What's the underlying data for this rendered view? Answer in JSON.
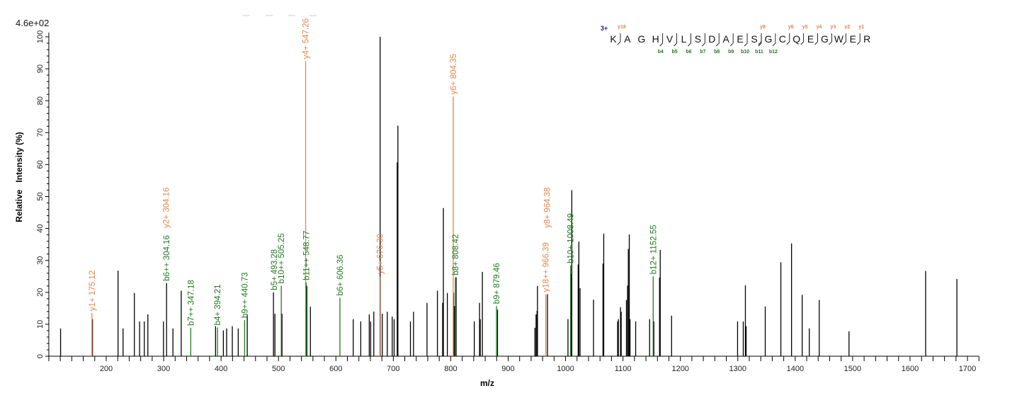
{
  "chart_data": {
    "type": "bar",
    "subtype": "mass-spectrum",
    "scale_label": "4.6e+02",
    "xlabel": "m/z",
    "ylabel": "Relative   Intensity (%)",
    "xlim": [
      100,
      1720
    ],
    "ylim": [
      0,
      100
    ],
    "x_ticks": [
      200,
      300,
      400,
      500,
      600,
      700,
      800,
      900,
      1000,
      1100,
      1200,
      1300,
      1400,
      1500,
      1600,
      1700
    ],
    "y_ticks": [
      0,
      10,
      20,
      30,
      40,
      50,
      60,
      70,
      80,
      90,
      100
    ],
    "grid": false,
    "colors": {
      "peak": "#000000",
      "y_ion": "#e8834a",
      "b_ion": "#1f7a1f",
      "charge": "#1a1aa0"
    },
    "peaks": [
      [
        120.5,
        8.7
      ],
      [
        176.1,
        11.6
      ],
      [
        220.6,
        26.8
      ],
      [
        229.3,
        8.7
      ],
      [
        249.0,
        19.8
      ],
      [
        258.1,
        10.9
      ],
      [
        266.3,
        10.9
      ],
      [
        272.5,
        13.1
      ],
      [
        299.7,
        10.9
      ],
      [
        305.1,
        22.9
      ],
      [
        316.2,
        8.7
      ],
      [
        330.6,
        20.5
      ],
      [
        390.4,
        9.4
      ],
      [
        404.0,
        8.1
      ],
      [
        409.7,
        8.7
      ],
      [
        419.6,
        9.4
      ],
      [
        429.9,
        8.7
      ],
      [
        445.6,
        13.1
      ],
      [
        491.3,
        20.0
      ],
      [
        493.8,
        13.3
      ],
      [
        506.1,
        13.3
      ],
      [
        549.4,
        22.0
      ],
      [
        555.6,
        15.5
      ],
      [
        630.2,
        11.6
      ],
      [
        643.3,
        10.9
      ],
      [
        658.1,
        13.1
      ],
      [
        660.6,
        10.9
      ],
      [
        666.0,
        14.0
      ],
      [
        677.1,
        100
      ],
      [
        680.8,
        13.3
      ],
      [
        689.5,
        13.9
      ],
      [
        698.1,
        12.4
      ],
      [
        701.4,
        11.6
      ],
      [
        706.8,
        60.7
      ],
      [
        708.0,
        72.2
      ],
      [
        729.8,
        10.9
      ],
      [
        735.2,
        13.9
      ],
      [
        758.7,
        16.7
      ],
      [
        776.8,
        20.5
      ],
      [
        785.9,
        16.7
      ],
      [
        787.2,
        46.4
      ],
      [
        794.1,
        19.8
      ],
      [
        805.2,
        19.9
      ],
      [
        806.5,
        15.7
      ],
      [
        809.4,
        24.7
      ],
      [
        841.0,
        10.9
      ],
      [
        850.2,
        16.7
      ],
      [
        851.4,
        11.6
      ],
      [
        855.1,
        26.4
      ],
      [
        881.5,
        14.6
      ],
      [
        946.6,
        8.9
      ],
      [
        948.6,
        13.1
      ],
      [
        950.3,
        14.2
      ],
      [
        951.1,
        22.0
      ],
      [
        968.4,
        19.4
      ],
      [
        1004.2,
        11.6
      ],
      [
        1009.6,
        25.7
      ],
      [
        1010.9,
        52.0
      ],
      [
        1022.0,
        28.7
      ],
      [
        1023.2,
        35.9
      ],
      [
        1025.3,
        21.3
      ],
      [
        1048.7,
        17.7
      ],
      [
        1065.2,
        29.0
      ],
      [
        1066.5,
        38.4
      ],
      [
        1090.7,
        10.9
      ],
      [
        1092.0,
        11.6
      ],
      [
        1095.7,
        15.3
      ],
      [
        1096.9,
        13.9
      ],
      [
        1106.0,
        17.6
      ],
      [
        1108.0,
        22.1
      ],
      [
        1109.3,
        33.6
      ],
      [
        1111.0,
        38.1
      ],
      [
        1112.3,
        11.6
      ],
      [
        1122.1,
        10.9
      ],
      [
        1146.4,
        11.6
      ],
      [
        1153.8,
        10.9
      ],
      [
        1163.7,
        24.6
      ],
      [
        1164.9,
        33.3
      ],
      [
        1184.7,
        12.7
      ],
      [
        1299.6,
        10.9
      ],
      [
        1309.5,
        10.9
      ],
      [
        1313.2,
        22.2
      ],
      [
        1314.5,
        9.4
      ],
      [
        1347.8,
        15.6
      ],
      [
        1375.0,
        29.4
      ],
      [
        1393.6,
        35.3
      ],
      [
        1412.1,
        19.2
      ],
      [
        1424.5,
        8.7
      ],
      [
        1441.8,
        17.6
      ],
      [
        1493.7,
        7.8
      ],
      [
        1627.2,
        26.7
      ],
      [
        1681.6,
        24.2
      ]
    ],
    "annotations": [
      {
        "label": "y1+ 175.12",
        "ion": "y",
        "mz": 175.1,
        "intensity": 13.5
      },
      {
        "label": "y2+ 304.16",
        "ion": "y",
        "mz": 304.2,
        "intensity": 39.5,
        "label_only": true
      },
      {
        "label": "b6++ 304.16",
        "ion": "b",
        "mz": 304.6,
        "intensity": 22.9,
        "label_only": true
      },
      {
        "label": "b7++ 347.18",
        "ion": "b",
        "mz": 347.2,
        "intensity": 8.9
      },
      {
        "label": "b4+ 394.21",
        "ion": "b",
        "mz": 393.7,
        "intensity": 9.0
      },
      {
        "label": "b9++ 440.73",
        "ion": "b",
        "mz": 441.0,
        "intensity": 11.3
      },
      {
        "label": "b5+ 493.28",
        "ion": "b",
        "mz": 492.5,
        "intensity": 20.0,
        "label_only": true
      },
      {
        "label": "b10++ 505.25",
        "ion": "b",
        "mz": 504.9,
        "intensity": 22.1
      },
      {
        "label": "y4+ 547.26",
        "ion": "y",
        "mz": 547.3,
        "intensity": 92.4
      },
      {
        "label": "b11++ 548.77",
        "ion": "b",
        "mz": 548.2,
        "intensity": 23.1
      },
      {
        "label": "b6+ 606.36",
        "ion": "b",
        "mz": 607.0,
        "intensity": 18.3
      },
      {
        "label": "y5+ 676.30",
        "ion": "y",
        "mz": 676.5,
        "intensity": 25.0
      },
      {
        "label": "y6+ 804.35",
        "ion": "y",
        "mz": 804.4,
        "intensity": 81.3
      },
      {
        "label": "b8+ 808.42",
        "ion": "b",
        "mz": 808.2,
        "intensity": 24.7
      },
      {
        "label": "b9+ 879.46",
        "ion": "b",
        "mz": 879.8,
        "intensity": 15.7
      },
      {
        "label": "y18++ 966.39",
        "ion": "y",
        "mz": 965.5,
        "intensity": 19.4
      },
      {
        "label": "y8+ 964.38",
        "ion": "y",
        "mz": 968.0,
        "intensity": 39.5,
        "label_only": true
      },
      {
        "label": "b10+ 1008.49",
        "ion": "b",
        "mz": 1008.8,
        "intensity": 28.4
      },
      {
        "label": "b12+ 1152.55",
        "ion": "b",
        "mz": 1152.6,
        "intensity": 25.0
      }
    ],
    "sequence": {
      "charge": "3+",
      "residues": [
        "K",
        "A",
        "G",
        "H",
        "V",
        "L",
        "S",
        "D",
        "A",
        "E",
        "S",
        "G",
        "C",
        "Q",
        "E",
        "G",
        "W",
        "E",
        "R"
      ],
      "y_cleavages": [
        {
          "after": 0,
          "label": "y18"
        },
        {
          "after": 10,
          "label": "y8"
        },
        {
          "after": 12,
          "label": "y6"
        },
        {
          "after": 13,
          "label": "y5"
        },
        {
          "after": 14,
          "label": "y4"
        },
        {
          "after": 15,
          "label": "y3"
        },
        {
          "after": 16,
          "label": "y2"
        },
        {
          "after": 17,
          "label": "y1"
        }
      ],
      "b_cleavages": [
        {
          "after": 3,
          "label": "b4"
        },
        {
          "after": 4,
          "label": "b5"
        },
        {
          "after": 5,
          "label": "b6"
        },
        {
          "after": 6,
          "label": "b7"
        },
        {
          "after": 7,
          "label": "b8"
        },
        {
          "after": 8,
          "label": "b9"
        },
        {
          "after": 9,
          "label": "b10"
        },
        {
          "after": 10,
          "label": "b11"
        },
        {
          "after": 11,
          "label": "b12"
        }
      ]
    }
  }
}
